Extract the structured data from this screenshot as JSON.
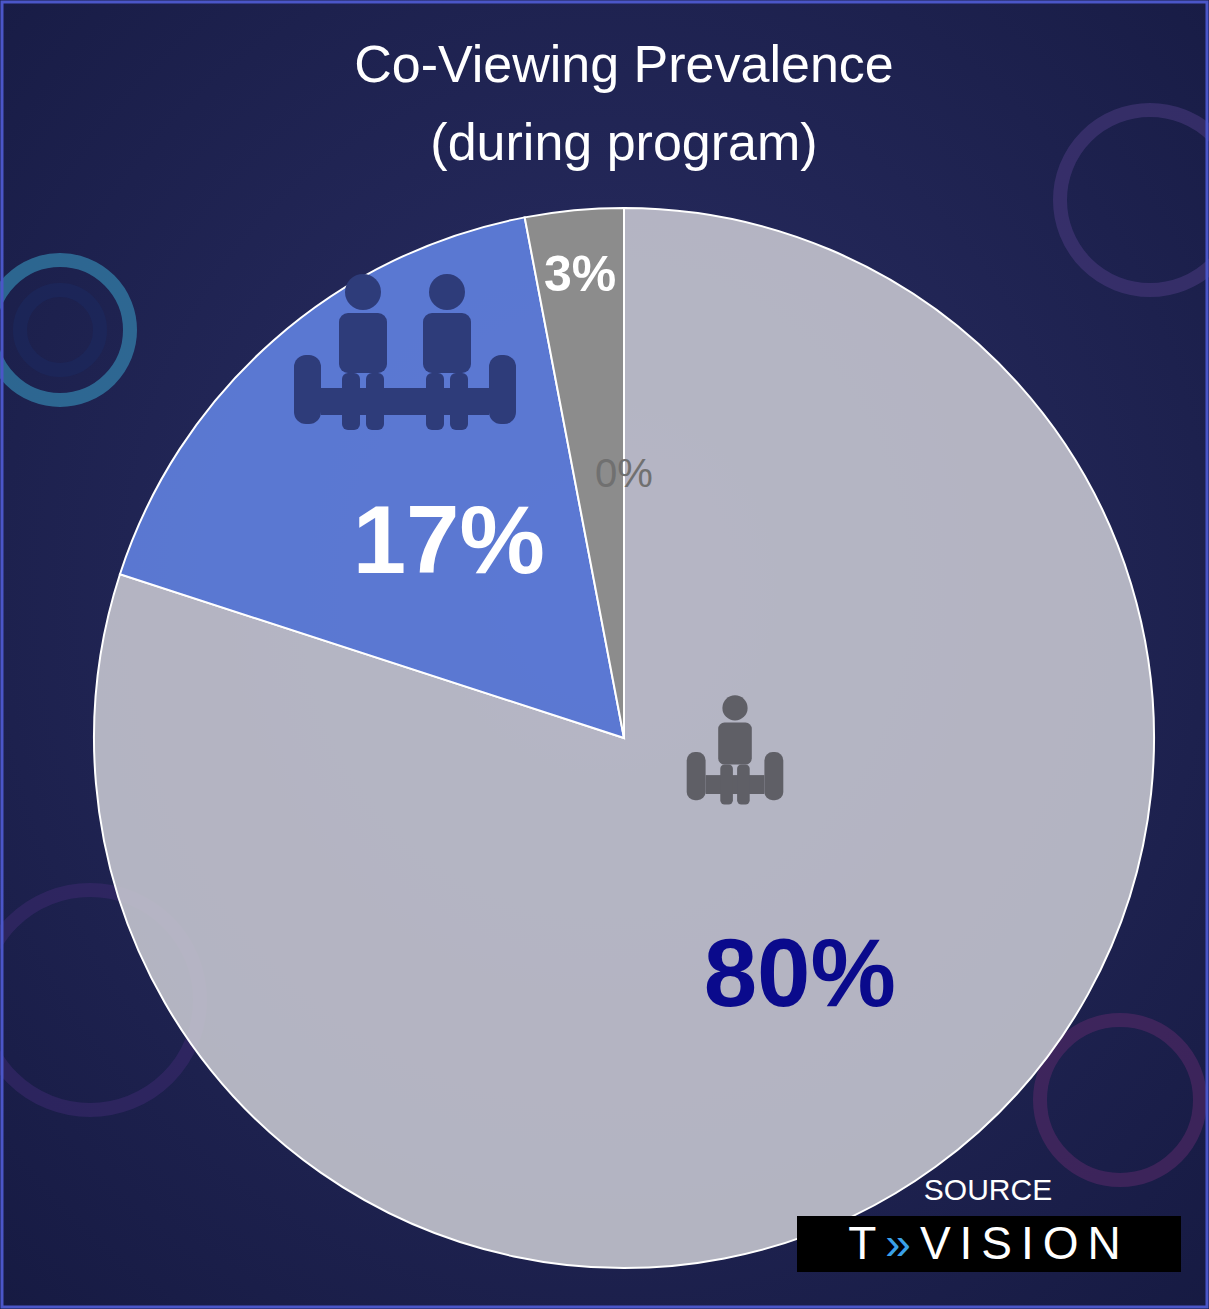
{
  "chart_data": {
    "type": "pie",
    "title": "Co-Viewing Prevalence",
    "subtitle": "(during program)",
    "values": [
      80,
      17,
      3,
      0
    ],
    "value_labels": [
      "80%",
      "17%",
      "3%",
      "0%"
    ],
    "colors": [
      "#c8c8d2",
      "#5f7fdc",
      "#8c8c8c",
      "#8c8c8c"
    ],
    "data_labels": true,
    "source": "SOURCE",
    "source_logo": "T»VISION"
  }
}
